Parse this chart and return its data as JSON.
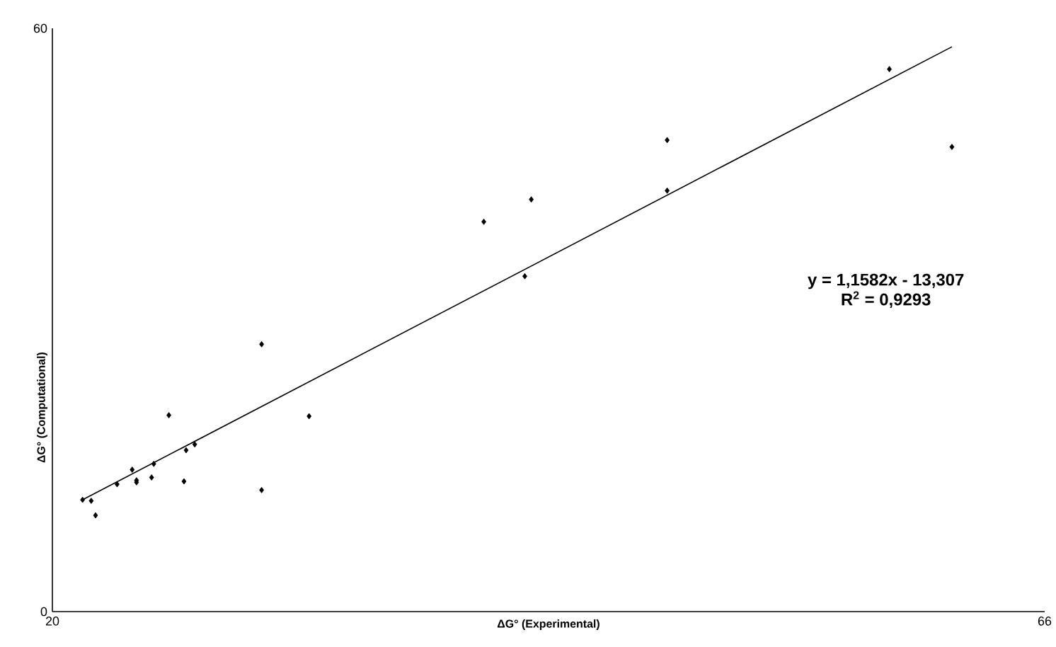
{
  "chart_data": {
    "type": "scatter",
    "xlabel": "ΔG° (Experimental)",
    "ylabel": "ΔG° (Computational)",
    "annotations": [
      "y = 1,1582x - 13,307",
      "R$^{2}$ = 0,9293"
    ],
    "xlim": [
      20,
      66
    ],
    "ylim": [
      0,
      60
    ],
    "xticks": [
      20,
      66
    ],
    "yticks": [
      0,
      60
    ],
    "grid": false,
    "series": [
      {
        "color": "#000000",
        "marker": "diamond",
        "x": [
          21.4,
          21.8,
          22.0,
          23.0,
          23.7,
          23.9,
          23.9,
          24.6,
          24.7,
          25.4,
          26.1,
          26.2,
          26.6,
          29.7,
          29.7,
          31.9,
          40.0,
          41.9,
          42.2,
          48.5,
          48.5,
          58.8,
          61.7
        ],
        "values": [
          11.5,
          11.4,
          9.9,
          13.1,
          14.6,
          13.5,
          13.3,
          13.8,
          15.2,
          20.2,
          13.4,
          16.6,
          17.2,
          27.5,
          12.5,
          20.1,
          40.1,
          34.5,
          42.4,
          48.5,
          43.3,
          55.8,
          47.8
        ]
      },
      {
        "type": "line",
        "color": "#000000",
        "marker": "none",
        "line_style": "solid",
        "x": [
          21.4,
          61.7
        ],
        "values": [
          11.5,
          58.1
        ]
      }
    ]
  }
}
